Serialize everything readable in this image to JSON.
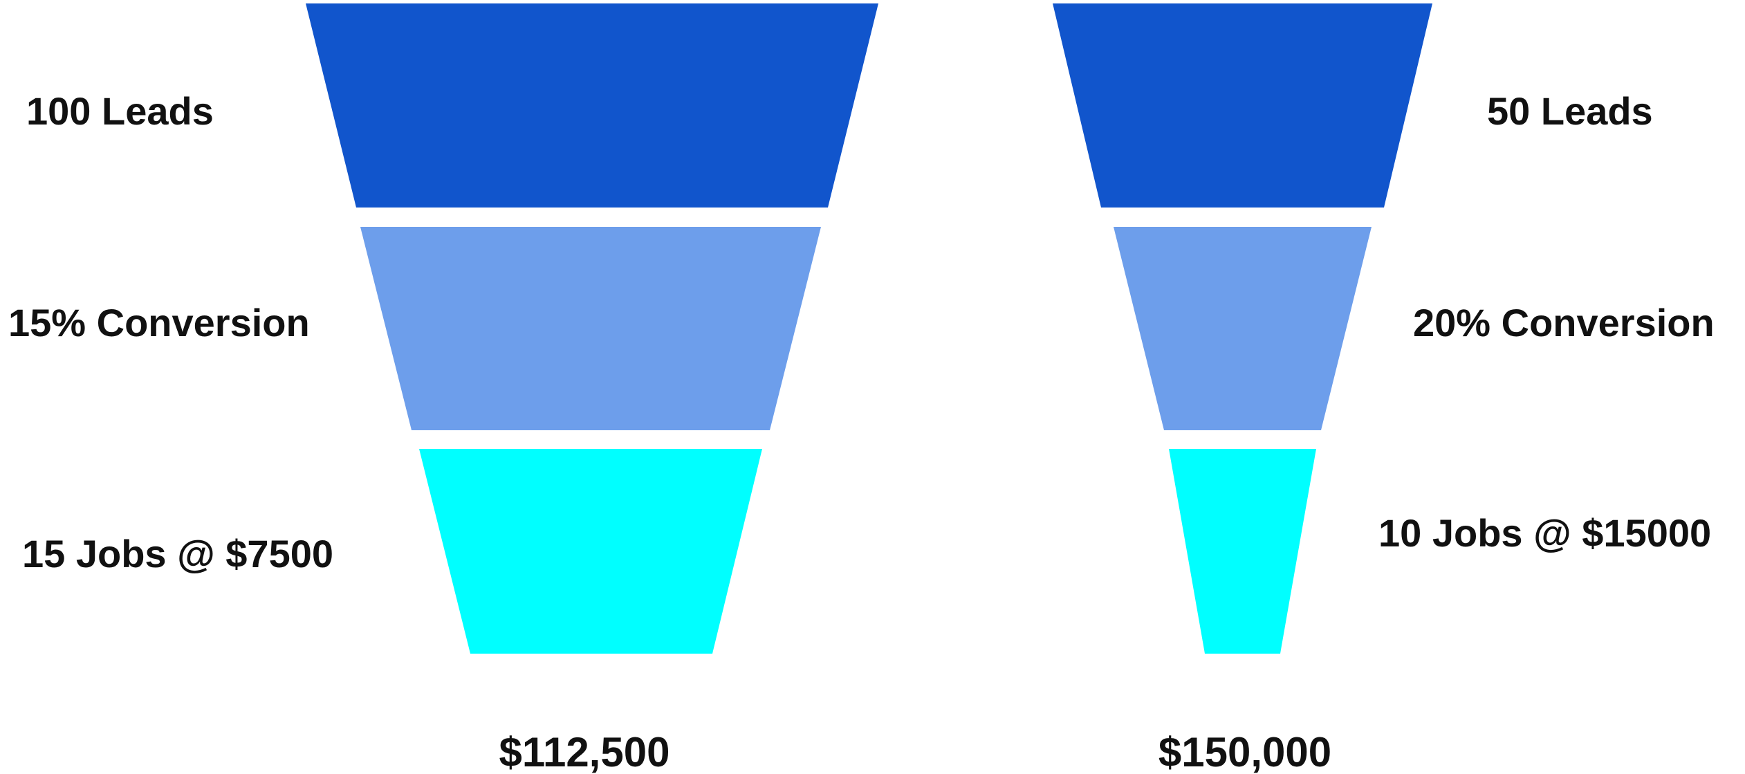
{
  "colors": {
    "stage_leads": "#1155cc",
    "stage_conversion": "#6d9eeb",
    "stage_jobs": "#00ffff",
    "text": "#111111",
    "background": "#ffffff"
  },
  "funnels": [
    {
      "stages": [
        {
          "label": "100 Leads",
          "color_key": "stage_leads"
        },
        {
          "label": "15% Conversion",
          "color_key": "stage_conversion"
        },
        {
          "label": "15 Jobs @ $7500",
          "color_key": "stage_jobs"
        }
      ],
      "total": "$112,500"
    },
    {
      "stages": [
        {
          "label": "50 Leads",
          "color_key": "stage_leads"
        },
        {
          "label": "20% Conversion",
          "color_key": "stage_conversion"
        },
        {
          "label": "10 Jobs @ $15000",
          "color_key": "stage_jobs"
        }
      ],
      "total": "$150,000"
    }
  ]
}
